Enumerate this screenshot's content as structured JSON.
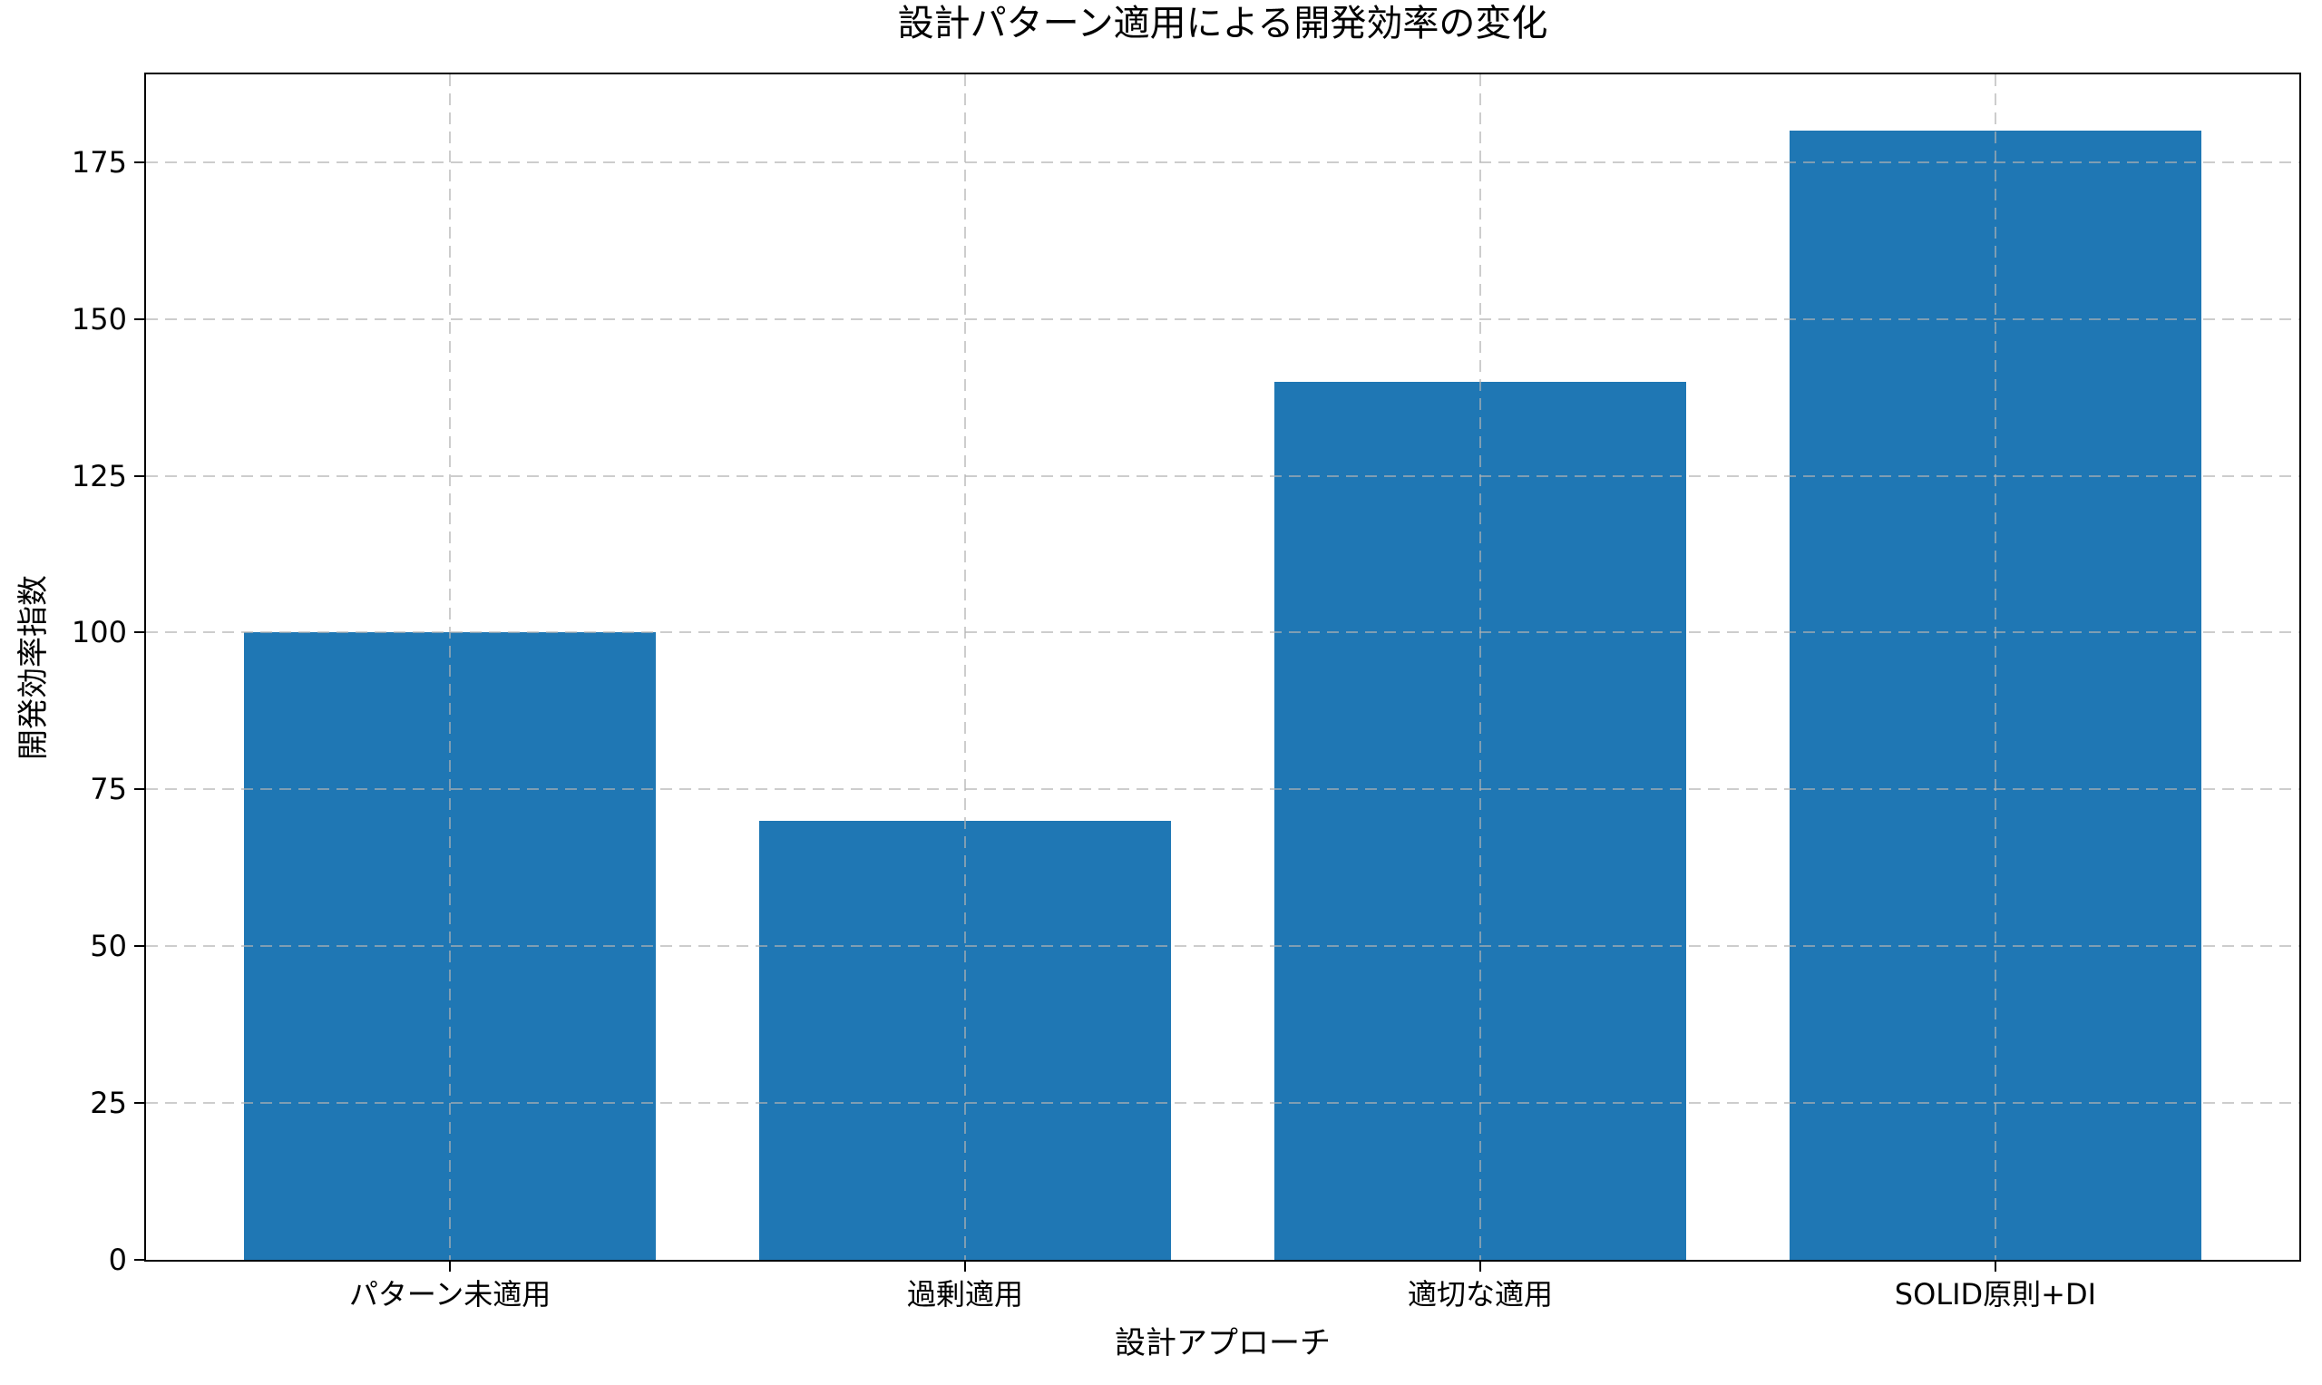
{
  "chart_data": {
    "type": "bar",
    "title": "設計パターン適用による開発効率の変化",
    "xlabel": "設計アプローチ",
    "ylabel": "開発効率指数",
    "categories": [
      "パターン未適用",
      "過剰適用",
      "適切な適用",
      "SOLID原則+DI"
    ],
    "values": [
      100,
      70,
      140,
      180
    ],
    "yticks": [
      0,
      25,
      50,
      75,
      100,
      125,
      150,
      175
    ],
    "ylim": [
      0,
      189
    ],
    "bar_color": "#1f77b4",
    "grid": "dashed, gray, drawn above bars",
    "legend": "none",
    "background_color": "#ffffff"
  }
}
